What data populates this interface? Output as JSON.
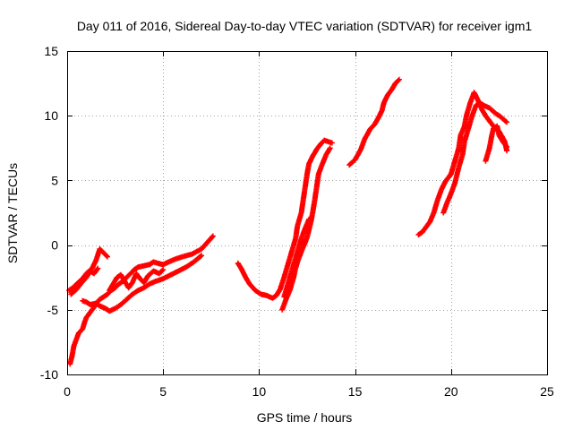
{
  "chart_data": {
    "type": "scatter",
    "title": "Day 011 of 2016, Sidereal Day-to-day VTEC variation (SDTVAR) for receiver igm1",
    "xlabel": "GPS time / hours",
    "ylabel": "SDTVAR / TECUs",
    "xlim": [
      0,
      25
    ],
    "ylim": [
      -10,
      15
    ],
    "x_ticks": [
      0,
      5,
      10,
      15,
      20,
      25
    ],
    "x_tick_labels": [
      "0",
      "5",
      "10",
      "15",
      "20",
      "25"
    ],
    "y_ticks": [
      -10,
      -5,
      0,
      5,
      10,
      15
    ],
    "y_tick_labels": [
      "-10",
      "-5",
      "0",
      "5",
      "10",
      "15"
    ],
    "grid": true,
    "legend": "none",
    "marker": "plus",
    "color": "#ff0000",
    "series": [
      {
        "points": [
          [
            0.1,
            -3.5
          ],
          [
            0.3,
            -3.3
          ],
          [
            0.5,
            -3.0
          ],
          [
            0.8,
            -2.6
          ],
          [
            1.0,
            -2.2
          ],
          [
            1.3,
            -1.8
          ],
          [
            1.5,
            -1.2
          ],
          [
            1.7,
            -0.3
          ],
          [
            1.9,
            -0.6
          ],
          [
            2.1,
            -0.9
          ]
        ]
      },
      {
        "points": [
          [
            0.2,
            -3.8
          ],
          [
            0.5,
            -3.4
          ],
          [
            0.7,
            -3.0
          ],
          [
            1.0,
            -2.5
          ],
          [
            1.2,
            -2.0
          ],
          [
            1.4,
            -2.2
          ],
          [
            1.6,
            -1.8
          ]
        ]
      },
      {
        "points": [
          [
            0.15,
            -9.2
          ],
          [
            0.25,
            -8.6
          ],
          [
            0.35,
            -7.8
          ],
          [
            0.5,
            -7.2
          ],
          [
            0.6,
            -6.8
          ],
          [
            0.8,
            -6.5
          ],
          [
            0.9,
            -6.0
          ],
          [
            1.0,
            -5.6
          ],
          [
            1.2,
            -5.2
          ],
          [
            1.4,
            -4.8
          ],
          [
            1.5,
            -4.5
          ],
          [
            1.7,
            -4.2
          ],
          [
            1.9,
            -4.0
          ],
          [
            2.1,
            -3.8
          ],
          [
            2.3,
            -3.5
          ],
          [
            2.5,
            -3.3
          ],
          [
            2.7,
            -3.0
          ],
          [
            2.9,
            -2.8
          ],
          [
            3.1,
            -2.5
          ],
          [
            3.3,
            -2.2
          ],
          [
            3.5,
            -1.9
          ],
          [
            3.7,
            -1.7
          ],
          [
            4.0,
            -1.6
          ],
          [
            4.3,
            -1.5
          ],
          [
            4.5,
            -1.3
          ],
          [
            4.7,
            -1.4
          ],
          [
            5.0,
            -1.5
          ],
          [
            5.3,
            -1.3
          ],
          [
            5.6,
            -1.1
          ],
          [
            6.0,
            -0.9
          ],
          [
            6.5,
            -0.7
          ],
          [
            7.0,
            -0.3
          ],
          [
            7.3,
            0.2
          ],
          [
            7.6,
            0.7
          ]
        ]
      },
      {
        "points": [
          [
            0.8,
            -4.3
          ],
          [
            1.0,
            -4.4
          ],
          [
            1.2,
            -4.6
          ],
          [
            1.5,
            -4.5
          ],
          [
            1.7,
            -4.7
          ],
          [
            2.0,
            -4.9
          ],
          [
            2.2,
            -5.1
          ],
          [
            2.5,
            -4.9
          ],
          [
            2.8,
            -4.6
          ],
          [
            3.1,
            -4.2
          ],
          [
            3.4,
            -3.8
          ],
          [
            3.7,
            -3.5
          ],
          [
            4.0,
            -3.3
          ],
          [
            4.3,
            -3.0
          ],
          [
            4.6,
            -2.8
          ],
          [
            5.0,
            -2.6
          ],
          [
            5.4,
            -2.3
          ],
          [
            5.8,
            -2.0
          ],
          [
            6.2,
            -1.7
          ],
          [
            6.6,
            -1.3
          ],
          [
            7.0,
            -0.8
          ]
        ]
      },
      {
        "points": [
          [
            2.2,
            -3.5
          ],
          [
            2.4,
            -3.0
          ],
          [
            2.6,
            -2.5
          ],
          [
            2.8,
            -2.3
          ],
          [
            3.0,
            -2.8
          ],
          [
            3.2,
            -3.3
          ],
          [
            3.4,
            -2.9
          ],
          [
            3.6,
            -2.2
          ],
          [
            3.8,
            -2.6
          ],
          [
            4.0,
            -2.9
          ],
          [
            4.2,
            -2.4
          ],
          [
            4.5,
            -2.0
          ],
          [
            4.8,
            -2.2
          ],
          [
            5.0,
            -1.9
          ]
        ]
      },
      {
        "points": [
          [
            8.9,
            -1.4
          ],
          [
            9.1,
            -1.9
          ],
          [
            9.3,
            -2.5
          ],
          [
            9.5,
            -3.0
          ],
          [
            9.8,
            -3.5
          ],
          [
            10.1,
            -3.8
          ],
          [
            10.4,
            -3.9
          ],
          [
            10.7,
            -4.1
          ],
          [
            10.9,
            -3.9
          ],
          [
            11.1,
            -3.4
          ],
          [
            11.3,
            -2.5
          ],
          [
            11.5,
            -1.5
          ],
          [
            11.7,
            -0.5
          ],
          [
            11.9,
            0.5
          ],
          [
            12.0,
            1.5
          ],
          [
            12.2,
            2.5
          ],
          [
            12.3,
            3.5
          ],
          [
            12.4,
            4.5
          ],
          [
            12.5,
            5.5
          ],
          [
            12.6,
            6.3
          ],
          [
            12.8,
            6.9
          ],
          [
            13.0,
            7.4
          ],
          [
            13.2,
            7.8
          ],
          [
            13.4,
            8.1
          ],
          [
            13.6,
            8.0
          ],
          [
            13.8,
            7.9
          ]
        ]
      },
      {
        "points": [
          [
            11.2,
            -5.0
          ],
          [
            11.4,
            -4.2
          ],
          [
            11.6,
            -3.5
          ],
          [
            11.8,
            -2.5
          ],
          [
            11.9,
            -1.8
          ],
          [
            12.0,
            -1.3
          ],
          [
            12.2,
            -0.5
          ],
          [
            12.4,
            0.2
          ],
          [
            12.5,
            0.6
          ],
          [
            12.6,
            1.2
          ],
          [
            12.7,
            1.8
          ],
          [
            12.8,
            2.6
          ],
          [
            12.9,
            3.5
          ],
          [
            13.0,
            4.5
          ],
          [
            13.1,
            5.5
          ],
          [
            13.3,
            6.3
          ],
          [
            13.5,
            7.0
          ],
          [
            13.7,
            7.5
          ]
        ]
      },
      {
        "points": [
          [
            11.3,
            -4.0
          ],
          [
            11.5,
            -3.0
          ],
          [
            11.7,
            -2.0
          ],
          [
            11.9,
            -1.0
          ],
          [
            12.0,
            -0.5
          ],
          [
            12.2,
            0.5
          ],
          [
            12.4,
            1.3
          ],
          [
            12.6,
            2.0
          ]
        ]
      },
      {
        "points": [
          [
            14.7,
            6.2
          ],
          [
            15.0,
            6.6
          ],
          [
            15.3,
            7.4
          ],
          [
            15.5,
            8.2
          ],
          [
            15.8,
            9.0
          ],
          [
            16.0,
            9.3
          ],
          [
            16.2,
            9.8
          ],
          [
            16.4,
            10.4
          ],
          [
            16.5,
            11.0
          ],
          [
            16.7,
            11.6
          ],
          [
            16.9,
            12.0
          ],
          [
            17.1,
            12.5
          ],
          [
            17.3,
            12.8
          ]
        ]
      },
      {
        "points": [
          [
            18.3,
            0.8
          ],
          [
            18.5,
            1.0
          ],
          [
            18.7,
            1.4
          ],
          [
            18.9,
            1.8
          ],
          [
            19.1,
            2.5
          ],
          [
            19.3,
            3.5
          ],
          [
            19.5,
            4.3
          ],
          [
            19.7,
            4.9
          ],
          [
            19.9,
            5.3
          ],
          [
            20.0,
            5.5
          ],
          [
            20.2,
            6.5
          ],
          [
            20.4,
            7.5
          ],
          [
            20.5,
            8.5
          ],
          [
            20.7,
            9.2
          ],
          [
            20.8,
            10.0
          ],
          [
            21.0,
            11.0
          ],
          [
            21.2,
            11.8
          ],
          [
            21.4,
            11.2
          ],
          [
            21.6,
            10.5
          ],
          [
            21.8,
            10.0
          ],
          [
            22.0,
            9.6
          ],
          [
            22.2,
            9.2
          ],
          [
            22.5,
            8.8
          ],
          [
            22.8,
            8.0
          ],
          [
            22.9,
            7.3
          ]
        ]
      },
      {
        "points": [
          [
            19.6,
            2.5
          ],
          [
            19.8,
            3.3
          ],
          [
            20.0,
            4.0
          ],
          [
            20.2,
            4.8
          ],
          [
            20.4,
            6.0
          ],
          [
            20.6,
            7.0
          ],
          [
            20.7,
            8.0
          ],
          [
            20.9,
            9.0
          ],
          [
            21.1,
            10.0
          ],
          [
            21.3,
            10.8
          ],
          [
            21.5,
            11.0
          ],
          [
            21.7,
            10.8
          ],
          [
            22.0,
            10.6
          ],
          [
            22.3,
            10.2
          ],
          [
            22.6,
            9.9
          ],
          [
            22.9,
            9.5
          ]
        ]
      },
      {
        "points": [
          [
            21.8,
            6.5
          ],
          [
            22.0,
            7.5
          ],
          [
            22.1,
            8.3
          ],
          [
            22.2,
            9.0
          ],
          [
            22.4,
            9.2
          ],
          [
            22.5,
            8.5
          ],
          [
            22.7,
            8.0
          ],
          [
            22.9,
            7.6
          ]
        ]
      }
    ]
  }
}
